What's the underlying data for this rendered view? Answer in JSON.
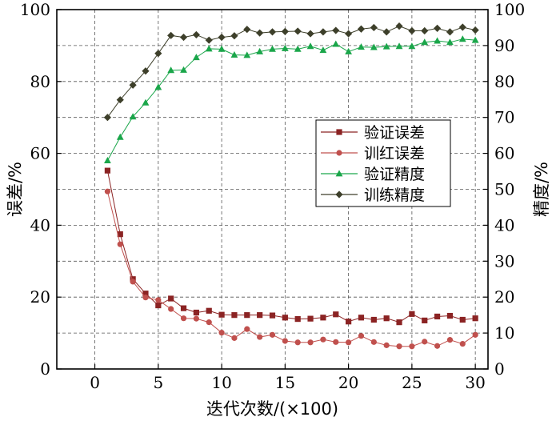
{
  "chart_data": {
    "type": "line",
    "xlabel": "迭代次数/(×100)",
    "ylabel_left": "误差/%",
    "ylabel_right": "精度/%",
    "xlim": [
      -3,
      31
    ],
    "ylim_left": [
      0,
      100
    ],
    "ylim_right": [
      0,
      100
    ],
    "xticks": [
      "0",
      "5",
      "10",
      "15",
      "20",
      "25",
      "30"
    ],
    "yticks_left": [
      "0",
      "20",
      "40",
      "60",
      "80",
      "100"
    ],
    "yticks_right": [
      "0",
      "10",
      "20",
      "30",
      "40",
      "50",
      "60",
      "70",
      "80",
      "90",
      "100"
    ],
    "grid": true,
    "legend_position": "center-right",
    "x": [
      1,
      2,
      3,
      4,
      5,
      6,
      7,
      8,
      9,
      10,
      11,
      12,
      13,
      14,
      15,
      16,
      17,
      18,
      19,
      20,
      21,
      22,
      23,
      24,
      25,
      26,
      27,
      28,
      29,
      30
    ],
    "series": [
      {
        "name": "验证误差",
        "axis": "left",
        "color": "#8b2323",
        "marker": "square",
        "values": [
          55.2,
          37.5,
          25.0,
          21.0,
          17.7,
          19.6,
          16.9,
          15.7,
          16.2,
          15.1,
          15.0,
          15.0,
          15.0,
          14.9,
          14.3,
          13.9,
          14.0,
          14.3,
          15.2,
          13.2,
          14.3,
          13.7,
          14.1,
          13.0,
          15.3,
          13.5,
          14.6,
          14.8,
          13.7,
          14.1
        ]
      },
      {
        "name": "训红误差",
        "axis": "left",
        "color": "#c0504d",
        "marker": "circle",
        "values": [
          49.4,
          34.7,
          24.3,
          19.9,
          19.2,
          16.7,
          14.1,
          14.0,
          13.0,
          10.1,
          8.6,
          11.1,
          8.9,
          9.5,
          7.8,
          7.4,
          7.4,
          8.2,
          7.5,
          7.4,
          9.2,
          7.5,
          6.6,
          6.3,
          6.3,
          7.6,
          6.4,
          8.1,
          7.0,
          9.5
        ]
      },
      {
        "name": "验证精度",
        "axis": "right",
        "color": "#1aa64a",
        "marker": "triangle",
        "values": [
          58.0,
          64.5,
          70.2,
          74.1,
          78.4,
          83.1,
          83.2,
          86.7,
          89.1,
          89.0,
          87.4,
          87.3,
          88.3,
          89.0,
          89.2,
          89.0,
          89.8,
          88.7,
          90.4,
          88.3,
          89.6,
          89.5,
          89.7,
          89.8,
          89.8,
          90.9,
          91.3,
          90.9,
          91.8,
          91.5
        ]
      },
      {
        "name": "训练精度",
        "axis": "right",
        "color": "#3d3f2a",
        "marker": "diamond",
        "values": [
          70.0,
          74.9,
          79.0,
          82.9,
          87.8,
          92.8,
          92.3,
          93.0,
          91.5,
          92.3,
          92.7,
          94.5,
          93.5,
          93.8,
          93.9,
          94.0,
          93.3,
          93.8,
          94.2,
          93.3,
          94.6,
          95.0,
          93.8,
          95.4,
          94.1,
          94.1,
          94.8,
          93.8,
          95.1,
          94.3
        ]
      }
    ]
  }
}
